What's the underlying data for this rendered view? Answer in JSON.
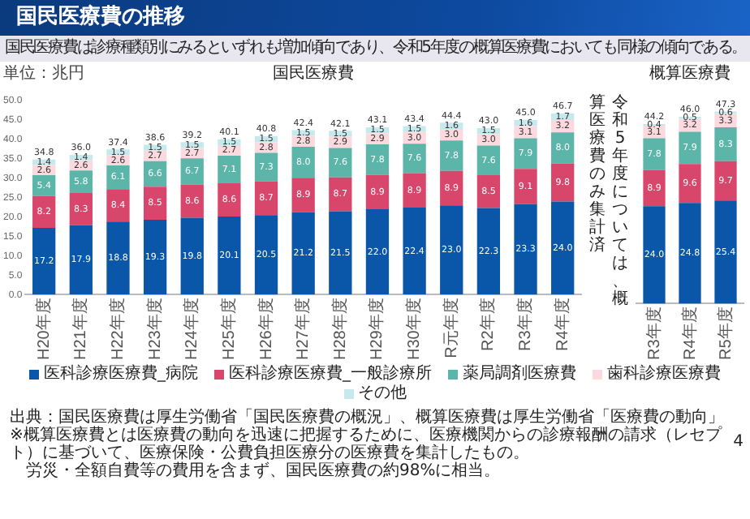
{
  "chart_data": [
    {
      "type": "other",
      "title": "国民医療費の推移",
      "subtitle": "国民医療費は診療種類別にみるといずれも増加傾向であり、令和5年度の概算医療費においても同様の傾向である。",
      "annotations": [
        "出典：国民医療費は厚生労働省「国民医療費の概況」、概算医療費は厚生労働省「医療費の動向」",
        "※概算医療費とは医療費の動向を迅速に把握するために、医療機関からの診療報酬の請求（レセプト）に基づいて、医療保険・公費負担医療分の医療費を集計したもの。",
        "労災・全額自費等の費用を含まず、国民医療費の約98%に相当。",
        "4"
      ]
    },
    {
      "type": "bar",
      "title": "国民医療費",
      "ylabel": "単位：兆円",
      "stacked": true,
      "legend": "bottom",
      "categories": [
        "H20年度",
        "H21年度",
        "H22年度",
        "H23年度",
        "H24年度",
        "H25年度",
        "H26年度",
        "H27年度",
        "H28年度",
        "H29年度",
        "H30年度",
        "R元年度",
        "R2年度",
        "R3年度",
        "R4年度"
      ],
      "series": [
        {
          "name": "医科診療医療費_病院",
          "color": "#0a56a8",
          "values": [
            17.2,
            17.9,
            18.8,
            19.3,
            19.8,
            20.1,
            20.5,
            21.2,
            21.5,
            22.0,
            22.4,
            23.0,
            22.3,
            23.3,
            24.0
          ],
          "value_labels": [
            "17.2",
            "17.9",
            "18.8",
            "19.3",
            "19.8",
            "20.1",
            "20.5",
            "21.2",
            "21.5",
            "22.0",
            "22.4",
            "23.0",
            "22.3",
            "23.3",
            "24.0"
          ]
        },
        {
          "name": "医科診療医療費_一般診療所",
          "color": "#d9466b",
          "values": [
            8.2,
            8.3,
            8.4,
            8.5,
            8.6,
            8.6,
            8.7,
            8.9,
            8.7,
            8.9,
            8.9,
            8.9,
            8.5,
            9.1,
            9.8
          ],
          "value_labels": [
            "8.2",
            "8.3",
            "8.4",
            "8.5",
            "8.6",
            "8.6",
            "8.7",
            "8.9",
            "8.7",
            "8.9",
            "8.9",
            "8.9",
            "8.5",
            "9.1",
            "9.8"
          ]
        },
        {
          "name": "薬局調剤医療費",
          "color": "#5bb5a8",
          "values": [
            5.4,
            5.8,
            6.1,
            6.6,
            6.7,
            7.1,
            7.3,
            8.0,
            7.6,
            7.8,
            7.6,
            7.8,
            7.6,
            7.9,
            8.0
          ],
          "value_labels": [
            "5.4",
            "5.8",
            "6.1",
            "6.6",
            "6.7",
            "7.1",
            "7.3",
            "8.0",
            "7.6",
            "7.8",
            "7.6",
            "7.8",
            "7.6",
            "7.9",
            "8.0"
          ]
        },
        {
          "name": "歯科診療医療費",
          "color": "#fbd9de",
          "values": [
            2.6,
            2.6,
            2.6,
            2.7,
            2.7,
            2.7,
            2.8,
            2.8,
            2.9,
            2.9,
            3.0,
            3.0,
            3.0,
            3.1,
            3.2
          ],
          "value_labels": [
            "2.6",
            "2.6",
            "2.6",
            "2.7",
            "2.7",
            "2.7",
            "2.8",
            "2.8",
            "2.9",
            "2.9",
            "3.0",
            "3.0",
            "3.0",
            "3.1",
            "3.2"
          ]
        },
        {
          "name": "その他",
          "color": "#c6e9ee",
          "values": [
            1.4,
            1.4,
            1.5,
            1.5,
            1.5,
            1.5,
            1.5,
            1.5,
            1.5,
            1.5,
            1.5,
            1.6,
            1.5,
            1.6,
            1.7
          ],
          "value_labels": [
            "1.4",
            "1.4",
            "1.5",
            "1.5",
            "1.5",
            "1.5",
            "1.5",
            "1.5",
            "1.5",
            "1.5",
            "1.5",
            "1.6",
            "1.5",
            "1.6",
            "1.7"
          ]
        }
      ],
      "totals": [
        "34.8",
        "36.0",
        "37.4",
        "38.6",
        "39.2",
        "40.1",
        "40.8",
        "42.4",
        "42.1",
        "43.1",
        "43.4",
        "44.4",
        "43.0",
        "45.0",
        "46.7"
      ],
      "ylim": [
        0,
        50
      ],
      "yticks": [
        {
          "value": 0,
          "label": "0.0"
        },
        {
          "value": 5,
          "label": "5.0"
        },
        {
          "value": 10,
          "label": "10.0"
        },
        {
          "value": 15,
          "label": "15.0"
        },
        {
          "value": 20,
          "label": "20.0"
        },
        {
          "value": 25,
          "label": "25.0"
        },
        {
          "value": 30,
          "label": "30.0"
        },
        {
          "value": 35,
          "label": "35.0"
        },
        {
          "value": 40,
          "label": "40.0"
        },
        {
          "value": 45,
          "label": "45.0"
        },
        {
          "value": 50,
          "label": "50.0"
        }
      ]
    },
    {
      "type": "bar",
      "title": "概算医療費",
      "stacked": true,
      "tick_labels": "x",
      "annotations": [
        "令和5年度については、概算医療費のみ集計済"
      ],
      "categories": [
        "R3年度",
        "R4年度",
        "R5年度"
      ],
      "series": [
        {
          "color": "#0a56a8",
          "values": [
            24.0,
            24.8,
            25.4
          ],
          "value_labels": [
            "24.0",
            "24.8",
            "25.4"
          ]
        },
        {
          "color": "#d9466b",
          "values": [
            8.9,
            9.6,
            9.7
          ],
          "value_labels": [
            "8.9",
            "9.6",
            "9.7"
          ]
        },
        {
          "color": "#5bb5a8",
          "values": [
            7.8,
            7.9,
            8.3
          ],
          "value_labels": [
            "7.8",
            "7.9",
            "8.3"
          ]
        },
        {
          "color": "#fbd9de",
          "values": [
            3.1,
            3.2,
            3.3
          ],
          "value_labels": [
            "3.1",
            "3.2",
            "3.3"
          ]
        },
        {
          "color": "#c6e9ee",
          "values": [
            0.4,
            0.5,
            0.6
          ],
          "value_labels": [
            "0.4",
            "0.5",
            "0.6"
          ]
        }
      ],
      "totals": [
        "44.2",
        "46.0",
        "47.3"
      ],
      "ylim": [
        0,
        50
      ]
    }
  ]
}
